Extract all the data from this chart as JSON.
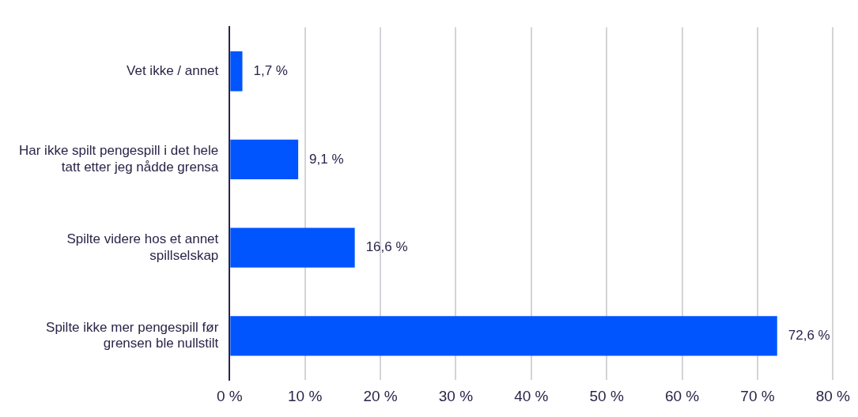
{
  "chart_data": {
    "type": "bar",
    "orientation": "horizontal",
    "categories": [
      "Vet ikke / annet",
      "Har ikke spilt pengespill i det hele\ntatt etter jeg nådde grensa",
      "Spilte videre hos et annet\nspillselskap",
      "Spilte ikke mer pengespill før\ngrensen ble nullstilt"
    ],
    "values": [
      1.7,
      9.1,
      16.6,
      72.6
    ],
    "value_labels": [
      "1,7 %",
      "9,1 %",
      "16,6 %",
      "72,6 %"
    ],
    "color": "#0055ff",
    "xlim": [
      0,
      80
    ],
    "xticks": [
      {
        "value": 0,
        "label": "0 %"
      },
      {
        "value": 10,
        "label": "10 %"
      },
      {
        "value": 20,
        "label": "20 %"
      },
      {
        "value": 30,
        "label": "30 %"
      },
      {
        "value": 40,
        "label": "40 %"
      },
      {
        "value": 50,
        "label": "50 %"
      },
      {
        "value": 60,
        "label": "60 %"
      },
      {
        "value": 70,
        "label": "70 %"
      },
      {
        "value": 80,
        "label": "80 %"
      }
    ],
    "grid": "x",
    "legend": false
  }
}
